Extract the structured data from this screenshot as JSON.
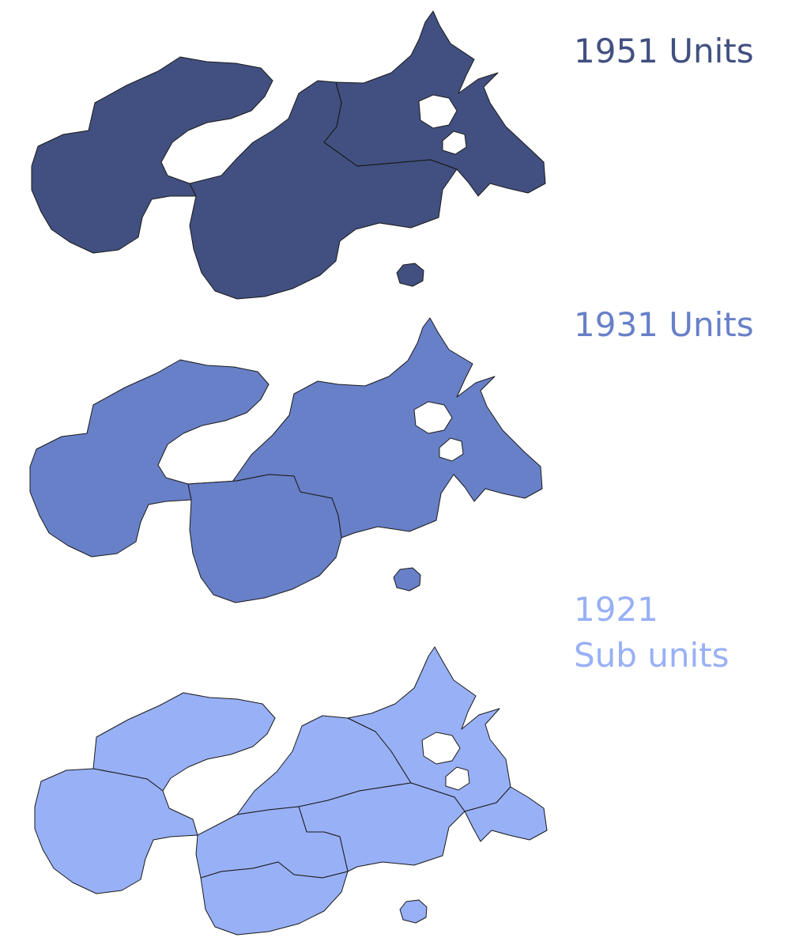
{
  "maps": [
    {
      "year_label": "1951 Units",
      "sub_label": "",
      "fill": "#415080"
    },
    {
      "year_label": "1931 Units",
      "sub_label": "",
      "fill": "#6880C8"
    },
    {
      "year_label": "1921",
      "sub_label": "Sub units",
      "fill": "#98B0F6"
    }
  ]
}
